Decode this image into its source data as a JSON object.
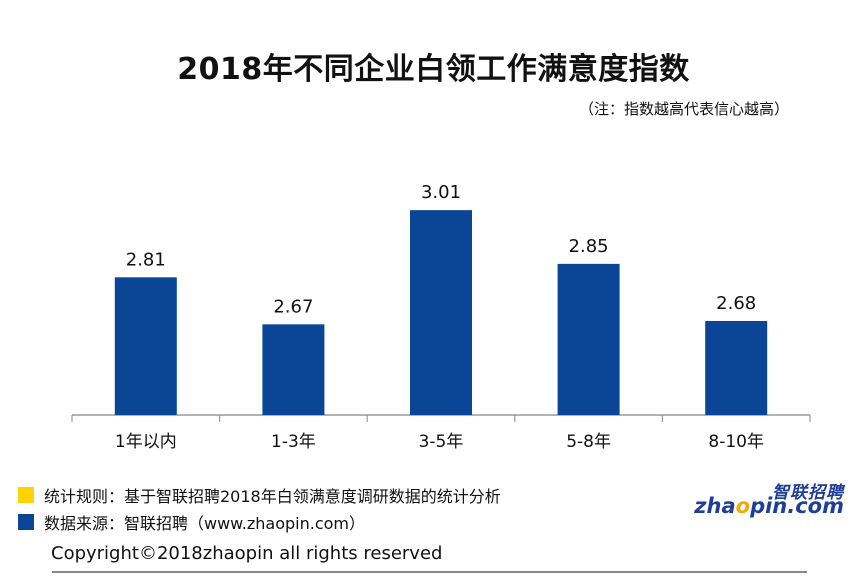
{
  "title": "2018年不同企业白领工作满意度指数",
  "note": "（注：指数越高代表信心越高）",
  "colors": {
    "bar": "#0a4596",
    "rule_square": "#ffd200",
    "source_square": "#0a4596"
  },
  "chart_data": {
    "type": "bar",
    "categories": [
      "1年以内",
      "1-3年",
      "3-5年",
      "5-8年",
      "8-10年"
    ],
    "values": [
      2.81,
      2.67,
      3.01,
      2.85,
      2.68
    ],
    "value_labels": [
      "2.81",
      "2.67",
      "3.01",
      "2.85",
      "2.68"
    ],
    "ylim": [
      2.4,
      3.07
    ],
    "grid": false,
    "legend": "none"
  },
  "footer": {
    "rule": "统计规则：基于智联招聘2018年白领满意度调研数据的统计分析",
    "source": "数据来源：智联招聘（www.zhaopin.com）",
    "copyright": "Copyright©2018zhaopin all rights reserved"
  },
  "logo": {
    "cn": "智联招聘",
    "en_pre": "zha",
    "en_o": "o",
    "en_post": "pin.com"
  }
}
